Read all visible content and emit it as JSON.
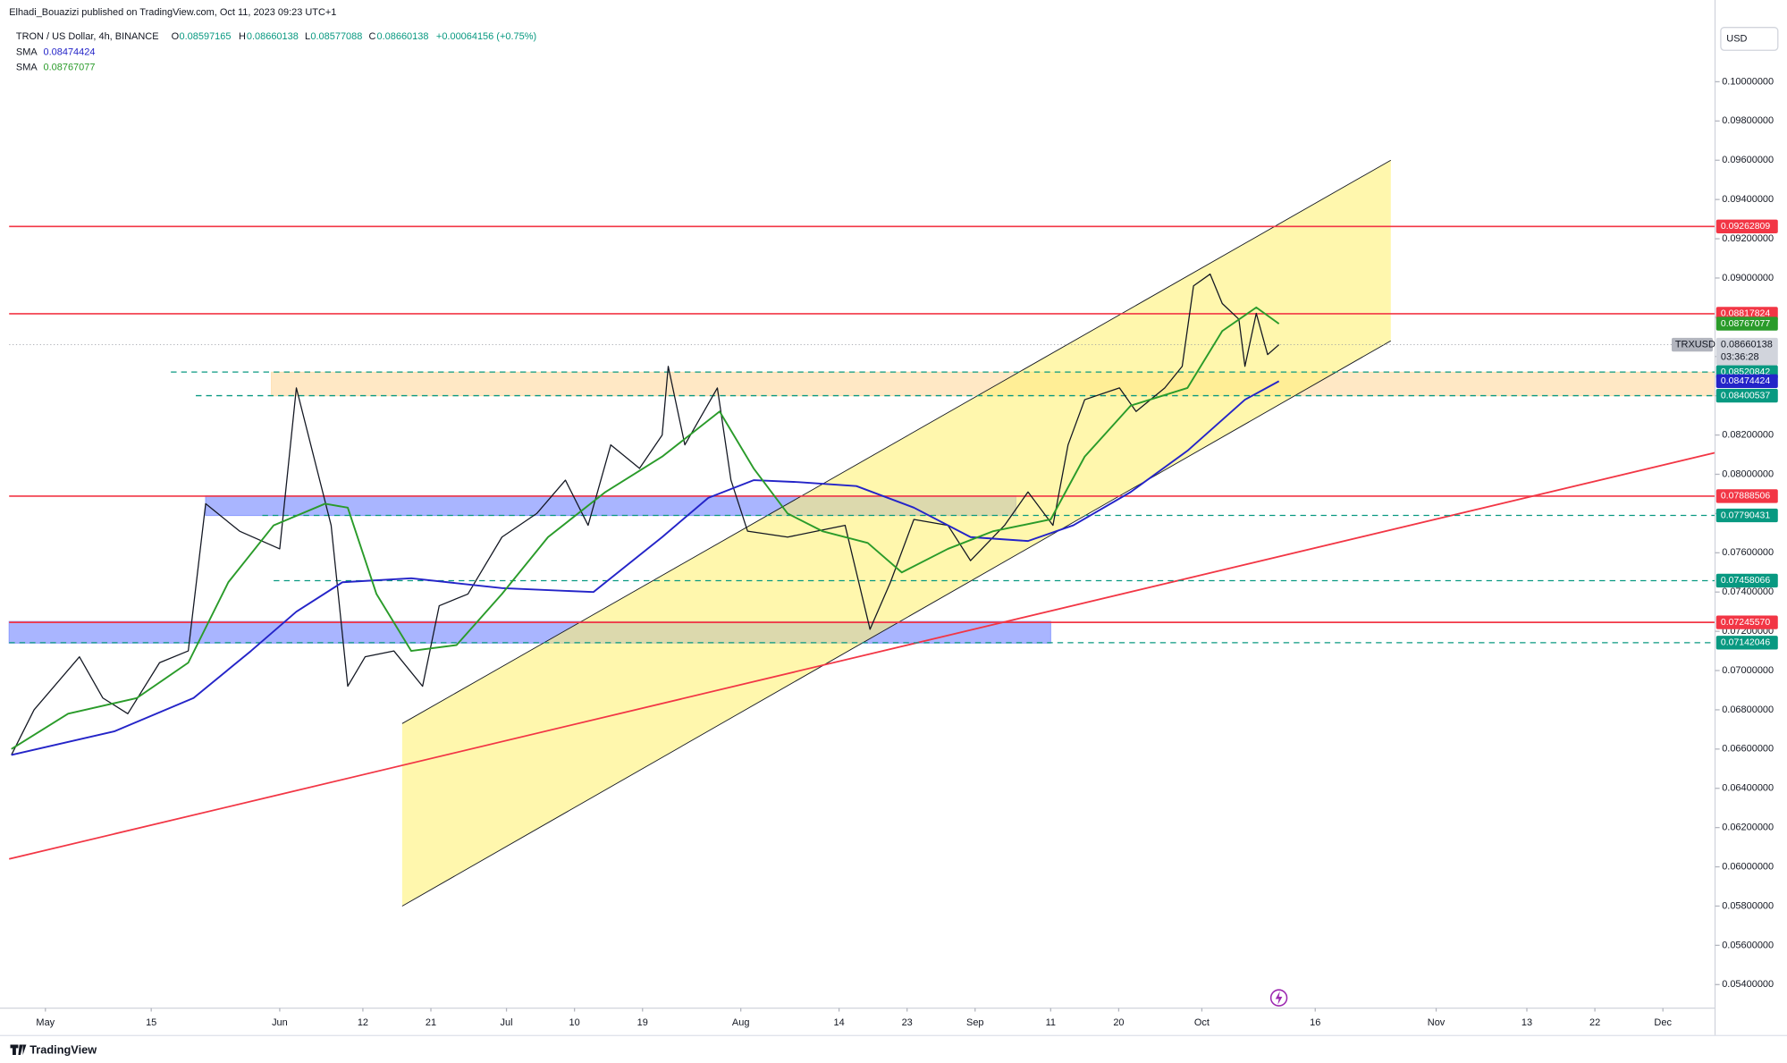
{
  "header": {
    "published": "Elhadi_Bouazizi published on TradingView.com, Oct 11, 2023 09:23 UTC+1",
    "symbol": "TRON / US Dollar, 4h, BINANCE",
    "ohlc": [
      {
        "label": "O",
        "value": "0.08597165"
      },
      {
        "label": "H",
        "value": "0.08660138"
      },
      {
        "label": "L",
        "value": "0.08577088"
      },
      {
        "label": "C",
        "value": "0.08660138"
      }
    ],
    "change": "+0.00064156 (+0.75%)",
    "countdown": "03:36:28",
    "currency": "USD"
  },
  "footer": {
    "brand": "TradingView"
  },
  "chart_data": {
    "type": "line",
    "grid": false,
    "xlim": [
      -4.8,
      220.9
    ],
    "xticks": [
      {
        "value": 0,
        "label": "May"
      },
      {
        "value": 14,
        "label": "15"
      },
      {
        "value": 31,
        "label": "Jun"
      },
      {
        "value": 42,
        "label": "12"
      },
      {
        "value": 51,
        "label": "21"
      },
      {
        "value": 61,
        "label": "Jul"
      },
      {
        "value": 70,
        "label": "10"
      },
      {
        "value": 79,
        "label": "19"
      },
      {
        "value": 92,
        "label": "Aug"
      },
      {
        "value": 105,
        "label": "14"
      },
      {
        "value": 114,
        "label": "23"
      },
      {
        "value": 123,
        "label": "Sep"
      },
      {
        "value": 133,
        "label": "11"
      },
      {
        "value": 142,
        "label": "20"
      },
      {
        "value": 153,
        "label": "Oct"
      },
      {
        "value": 168,
        "label": "16"
      },
      {
        "value": 184,
        "label": "Nov"
      },
      {
        "value": 196,
        "label": "13"
      },
      {
        "value": 205,
        "label": "22"
      },
      {
        "value": 214,
        "label": "Dec"
      }
    ],
    "ylim": [
      0.0528,
      0.103
    ],
    "yticks": [
      {
        "value": 0.054,
        "label": "0.05400000"
      },
      {
        "value": 0.056,
        "label": "0.05600000"
      },
      {
        "value": 0.058,
        "label": "0.05800000"
      },
      {
        "value": 0.06,
        "label": "0.06000000"
      },
      {
        "value": 0.062,
        "label": "0.06200000"
      },
      {
        "value": 0.064,
        "label": "0.06400000"
      },
      {
        "value": 0.066,
        "label": "0.06600000"
      },
      {
        "value": 0.068,
        "label": "0.06800000"
      },
      {
        "value": 0.07,
        "label": "0.07000000"
      },
      {
        "value": 0.072,
        "label": "0.07200000"
      },
      {
        "value": 0.074,
        "label": "0.07400000"
      },
      {
        "value": 0.076,
        "label": "0.07600000"
      },
      {
        "value": 0.078,
        "label": "0.07800000"
      },
      {
        "value": 0.08,
        "label": "0.08000000"
      },
      {
        "value": 0.082,
        "label": "0.08200000"
      },
      {
        "value": 0.084,
        "label": "0.08400000"
      },
      {
        "value": 0.086,
        "label": "0.08600000"
      },
      {
        "value": 0.088,
        "label": "0.08800000"
      },
      {
        "value": 0.09,
        "label": "0.09000000"
      },
      {
        "value": 0.092,
        "label": "0.09200000"
      },
      {
        "value": 0.094,
        "label": "0.09400000"
      },
      {
        "value": 0.096,
        "label": "0.09600000"
      },
      {
        "value": 0.098,
        "label": "0.09800000"
      },
      {
        "value": 0.1,
        "label": "0.10000000"
      }
    ],
    "series": [
      {
        "name": "TRXUSD",
        "color": "#131722",
        "x": [
          -4.5,
          -1.5,
          4.5,
          7.6,
          10.9,
          15.1,
          18.9,
          21.2,
          25.7,
          31.0,
          33.2,
          35.5,
          37.8,
          40.0,
          42.3,
          46.1,
          49.9,
          52.1,
          55.9,
          60.4,
          65.0,
          68.8,
          71.8,
          74.8,
          78.6,
          81.6,
          82.4,
          84.6,
          88.9,
          90.7,
          92.9,
          98.2,
          105.8,
          109.1,
          111.8,
          114.9,
          119.4,
          122.4,
          126.9,
          130.0,
          133.3,
          135.3,
          137.5,
          142.1,
          144.3,
          148.1,
          150.4,
          151.9,
          154.1,
          155.7,
          157.9,
          158.7,
          160.2,
          161.7,
          163.2
        ],
        "values": [
          0.0657,
          0.068,
          0.0707,
          0.0686,
          0.0678,
          0.0704,
          0.071,
          0.0785,
          0.0771,
          0.0762,
          0.0844,
          0.0809,
          0.0774,
          0.0692,
          0.0707,
          0.071,
          0.0692,
          0.0733,
          0.0739,
          0.0768,
          0.078,
          0.0797,
          0.0774,
          0.0815,
          0.0803,
          0.082,
          0.0855,
          0.0815,
          0.0844,
          0.0797,
          0.0771,
          0.0768,
          0.0774,
          0.0721,
          0.0745,
          0.0777,
          0.0774,
          0.0756,
          0.0774,
          0.0791,
          0.0774,
          0.0815,
          0.0838,
          0.0844,
          0.0832,
          0.0844,
          0.0855,
          0.0896,
          0.0902,
          0.0887,
          0.0879,
          0.0855,
          0.0882,
          0.0861,
          0.08660138
        ]
      },
      {
        "name": "SMA",
        "color": "#2424c8",
        "legend_value": "0.08474424",
        "x": [
          -4.5,
          9.1,
          19.6,
          27.2,
          33.2,
          39.3,
          48.4,
          60.4,
          72.5,
          81.6,
          87.7,
          93.7,
          99.7,
          107.3,
          114.9,
          122.4,
          130.0,
          136.0,
          143.6,
          151.1,
          158.7,
          163.2
        ],
        "values": [
          0.0657,
          0.0669,
          0.0686,
          0.071,
          0.073,
          0.0745,
          0.0747,
          0.0742,
          0.074,
          0.0768,
          0.0788,
          0.0797,
          0.0796,
          0.0794,
          0.0783,
          0.0768,
          0.0766,
          0.0774,
          0.0791,
          0.0812,
          0.0838,
          0.08474424
        ]
      },
      {
        "name": "SMA",
        "color": "#2a9b2a",
        "legend_value": "0.08767077",
        "x": [
          -4.5,
          3.0,
          12.1,
          18.9,
          24.2,
          30.2,
          37.0,
          40.0,
          43.8,
          48.4,
          54.4,
          60.4,
          66.5,
          74.1,
          81.6,
          89.2,
          93.7,
          98.2,
          102.8,
          108.8,
          113.3,
          119.4,
          125.4,
          133.0,
          137.5,
          143.6,
          151.1,
          155.7,
          160.2,
          163.2
        ],
        "values": [
          0.066,
          0.0678,
          0.0686,
          0.0704,
          0.0745,
          0.0774,
          0.0785,
          0.0783,
          0.0739,
          0.071,
          0.0713,
          0.0739,
          0.0768,
          0.0791,
          0.0809,
          0.0832,
          0.0803,
          0.078,
          0.0771,
          0.0765,
          0.075,
          0.0762,
          0.0771,
          0.0777,
          0.0809,
          0.0835,
          0.0844,
          0.0873,
          0.0885,
          0.08767077
        ]
      }
    ],
    "levels": [
      {
        "value": 0.09262809,
        "label": "0.09262809",
        "style": "solid",
        "color": "#f23645",
        "start": -4.8
      },
      {
        "value": 0.08817824,
        "label": "0.08817824",
        "style": "solid",
        "color": "#f23645",
        "start": -4.8
      },
      {
        "value": 0.08520842,
        "label": "0.08520842",
        "style": "dashed",
        "color": "#089981",
        "start": 16.6
      },
      {
        "value": 0.08400537,
        "label": "0.08400537",
        "style": "dashed",
        "color": "#089981",
        "start": 19.9
      },
      {
        "value": 0.07888506,
        "label": "0.07888506",
        "style": "solid",
        "color": "#f23645",
        "start": -4.8
      },
      {
        "value": 0.07790431,
        "label": "0.07790431",
        "style": "dashed",
        "color": "#089981",
        "start": 28.7
      },
      {
        "value": 0.07458066,
        "label": "0.07458066",
        "style": "dashed",
        "color": "#089981",
        "start": 30.2
      },
      {
        "value": 0.0724557,
        "label": "0.07245570",
        "style": "solid",
        "color": "#f23645",
        "start": -4.8
      },
      {
        "value": 0.07142046,
        "label": "0.07142046",
        "style": "dashed",
        "color": "#089981",
        "start": -4.8
      }
    ],
    "zones": [
      {
        "x": [
          29.9,
          220.9
        ],
        "y": [
          0.084,
          0.0852
        ],
        "color": "#ffe0b2"
      },
      {
        "x": [
          21.2,
          128.4
        ],
        "y": [
          0.0779,
          0.0789
        ],
        "color": "#8c9cff"
      },
      {
        "x": [
          -4.8,
          133.0
        ],
        "y": [
          0.0714,
          0.0725
        ],
        "color": "#8c9cff"
      }
    ],
    "channel": {
      "x": [
        47.2,
        178.0
      ],
      "upper": [
        0.0673,
        0.096
      ],
      "lower": [
        0.058,
        0.0868
      ],
      "color": "#fff176"
    },
    "trendline": {
      "x": [
        -4.8,
        220.9
      ],
      "y": [
        0.0604,
        0.0811
      ],
      "color": "#f23645"
    }
  }
}
